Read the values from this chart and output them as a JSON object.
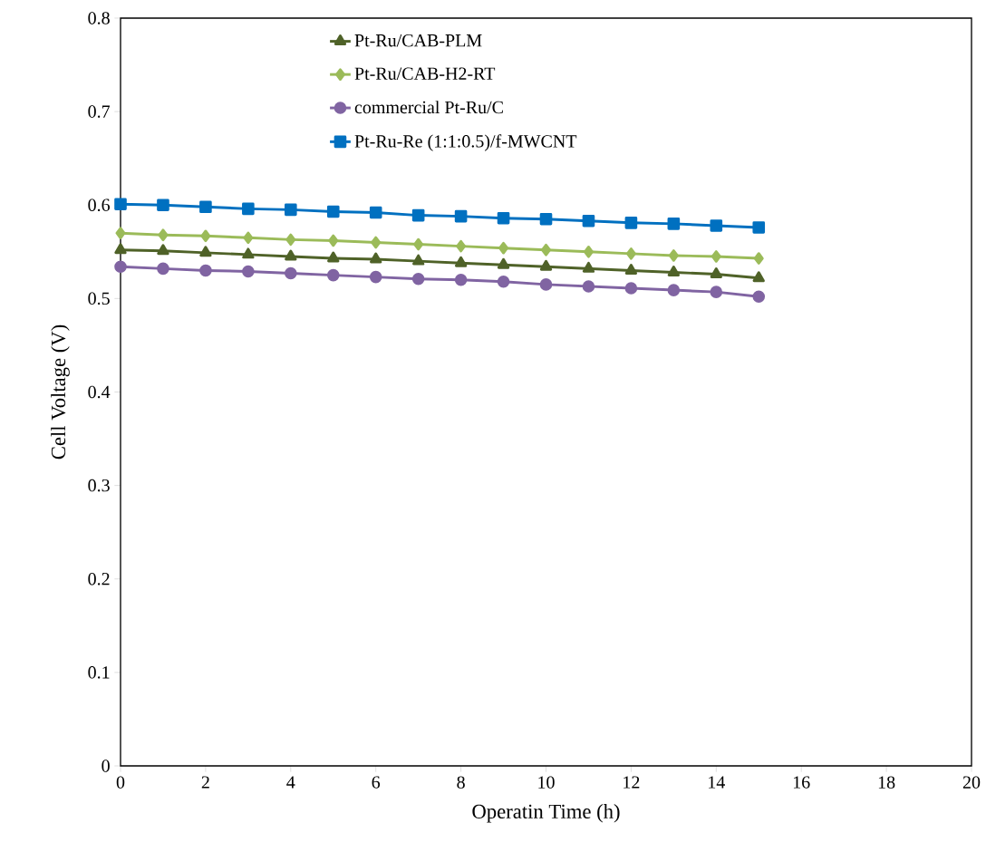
{
  "chart_data": {
    "type": "line",
    "xlabel": "Operatin Time (h)",
    "ylabel": "Cell Voltage (V)",
    "x": [
      0,
      1,
      2,
      3,
      4,
      5,
      6,
      7,
      8,
      9,
      10,
      11,
      12,
      13,
      14,
      15
    ],
    "series": [
      {
        "name": "Pt-Ru/CAB-PLM",
        "color": "#4f6228",
        "marker": "triangle",
        "values": [
          0.552,
          0.551,
          0.549,
          0.547,
          0.545,
          0.543,
          0.542,
          0.54,
          0.538,
          0.536,
          0.534,
          0.532,
          0.53,
          0.528,
          0.526,
          0.522
        ]
      },
      {
        "name": "Pt-Ru/CAB-H2-RT",
        "color": "#9bbb59",
        "marker": "diamond",
        "values": [
          0.57,
          0.568,
          0.567,
          0.565,
          0.563,
          0.562,
          0.56,
          0.558,
          0.556,
          0.554,
          0.552,
          0.55,
          0.548,
          0.546,
          0.545,
          0.543
        ]
      },
      {
        "name": "commercial Pt-Ru/C",
        "color": "#8064a2",
        "marker": "circle",
        "values": [
          0.534,
          0.532,
          0.53,
          0.529,
          0.527,
          0.525,
          0.523,
          0.521,
          0.52,
          0.518,
          0.515,
          0.513,
          0.511,
          0.509,
          0.507,
          0.502
        ]
      },
      {
        "name": "Pt-Ru-Re (1:1:0.5)/f-MWCNT",
        "color": "#0070c0",
        "marker": "square",
        "values": [
          0.601,
          0.6,
          0.598,
          0.596,
          0.595,
          0.593,
          0.592,
          0.589,
          0.588,
          0.586,
          0.585,
          0.583,
          0.581,
          0.58,
          0.578,
          0.576
        ]
      }
    ],
    "xlim": [
      0,
      20
    ],
    "xticks": [
      0,
      2,
      4,
      6,
      8,
      10,
      12,
      14,
      16,
      18,
      20
    ],
    "ylim": [
      0,
      0.8
    ],
    "yticks": [
      0,
      0.1,
      0.2,
      0.3,
      0.4,
      0.5,
      0.6,
      0.7,
      0.8
    ],
    "grid": false,
    "legend": "top",
    "line_style": "solid"
  }
}
